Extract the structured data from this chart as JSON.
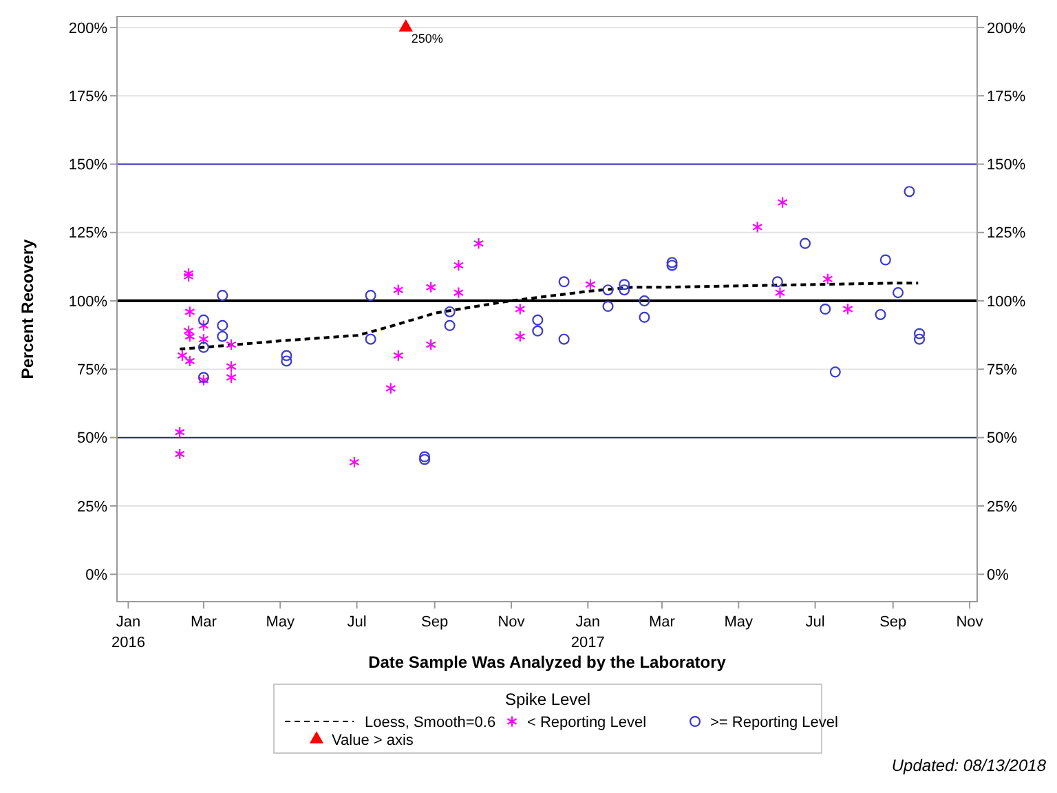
{
  "chart_data": {
    "type": "scatter",
    "xlabel": "Date Sample Was Analyzed by the Laboratory",
    "ylabel": "Percent Recovery",
    "legend_title": "Spike Level",
    "legend": "bottom",
    "grid": "y",
    "xlim": [
      "2015-12-23",
      "2017-11-07"
    ],
    "xticks": [
      {
        "value": "2016-01-01",
        "label": "Jan\n2016"
      },
      {
        "value": "2016-03-01",
        "label": "Mar"
      },
      {
        "value": "2016-05-01",
        "label": "May"
      },
      {
        "value": "2016-07-01",
        "label": "Jul"
      },
      {
        "value": "2016-09-01",
        "label": "Sep"
      },
      {
        "value": "2016-11-01",
        "label": "Nov"
      },
      {
        "value": "2017-01-01",
        "label": "Jan\n2017"
      },
      {
        "value": "2017-03-01",
        "label": "Mar"
      },
      {
        "value": "2017-05-01",
        "label": "May"
      },
      {
        "value": "2017-07-01",
        "label": "Jul"
      },
      {
        "value": "2017-09-01",
        "label": "Sep"
      },
      {
        "value": "2017-11-01",
        "label": "Nov"
      }
    ],
    "ylim": [
      -10,
      204
    ],
    "yticks": [
      {
        "value": 0,
        "label": "0%"
      },
      {
        "value": 25,
        "label": "25%"
      },
      {
        "value": 50,
        "label": "50%"
      },
      {
        "value": 75,
        "label": "75%"
      },
      {
        "value": 100,
        "label": "100%"
      },
      {
        "value": 125,
        "label": "125%"
      },
      {
        "value": 150,
        "label": "150%"
      },
      {
        "value": 175,
        "label": "175%"
      },
      {
        "value": 200,
        "label": "200%"
      }
    ],
    "y2lim": [
      -10,
      204
    ],
    "y2ticks": [
      {
        "value": 0,
        "label": "0%"
      },
      {
        "value": 25,
        "label": "25%"
      },
      {
        "value": 50,
        "label": "50%"
      },
      {
        "value": 75,
        "label": "75%"
      },
      {
        "value": 100,
        "label": "100%"
      },
      {
        "value": 125,
        "label": "125%"
      },
      {
        "value": 150,
        "label": "150%"
      },
      {
        "value": 175,
        "label": "175%"
      },
      {
        "value": 200,
        "label": "200%"
      }
    ],
    "ref_lines": [
      {
        "axis": "y",
        "value": 100,
        "color": "#000000"
      },
      {
        "axis": "y",
        "value": 150,
        "color": "#3434b0"
      },
      {
        "axis": "y",
        "value": 50,
        "color": "#2a2a80"
      }
    ],
    "series": [
      {
        "name": "Loess, Smooth=0.6",
        "type": "line",
        "line_style": "dashed",
        "marker": "none",
        "color": "#000000",
        "x": [
          "2016-02-11",
          "2016-03-01",
          "2016-05-02",
          "2016-07-02",
          "2016-08-03",
          "2016-09-01",
          "2016-10-31",
          "2017-01-01",
          "2017-02-06",
          "2017-03-01",
          "2017-05-01",
          "2017-07-01",
          "2017-09-01",
          "2017-09-21"
        ],
        "values": [
          82.4,
          83,
          85.4,
          87.4,
          91.5,
          95.5,
          100,
          103.5,
          105,
          105,
          105.5,
          106,
          106.5,
          106.5
        ]
      },
      {
        "name": "< Reporting Level",
        "marker": "cross",
        "color": "#ff00ff",
        "x": [
          "2016-02-11",
          "2016-02-11",
          "2016-02-13",
          "2016-02-18",
          "2016-02-18",
          "2016-02-19",
          "2016-02-18",
          "2016-02-19",
          "2016-02-19",
          "2016-03-01",
          "2016-03-01",
          "2016-03-01",
          "2016-03-23",
          "2016-03-23",
          "2016-03-23",
          "2016-06-29",
          "2016-07-28",
          "2016-08-03",
          "2016-08-03",
          "2016-08-29",
          "2016-08-29",
          "2016-09-20",
          "2016-09-20",
          "2016-10-06",
          "2016-11-08",
          "2016-11-08",
          "2017-01-03",
          "2017-05-16",
          "2017-06-03",
          "2017-06-05",
          "2017-07-11",
          "2017-07-27"
        ],
        "values": [
          52,
          44,
          80,
          110,
          109,
          96,
          89,
          87,
          78,
          91,
          86,
          71,
          84,
          76,
          72,
          41,
          68,
          104,
          80,
          105,
          84,
          113,
          103,
          121,
          97,
          87,
          106,
          127,
          103,
          136,
          108,
          97
        ]
      },
      {
        "name": ">= Reporting Level",
        "marker": "circle",
        "color": "#3b3bcc",
        "x": [
          "2016-03-01",
          "2016-03-01",
          "2016-03-01",
          "2016-03-16",
          "2016-03-16",
          "2016-03-16",
          "2016-05-06",
          "2016-05-06",
          "2016-07-12",
          "2016-07-12",
          "2016-08-24",
          "2016-08-24",
          "2016-09-13",
          "2016-09-13",
          "2016-11-22",
          "2016-11-22",
          "2016-12-13",
          "2016-12-13",
          "2017-01-17",
          "2017-01-17",
          "2017-01-30",
          "2017-01-30",
          "2017-02-15",
          "2017-02-15",
          "2017-03-09",
          "2017-03-09",
          "2017-06-01",
          "2017-06-23",
          "2017-07-09",
          "2017-07-17",
          "2017-08-22",
          "2017-08-26",
          "2017-09-05",
          "2017-09-14",
          "2017-09-22",
          "2017-09-22"
        ],
        "values": [
          93,
          83,
          72,
          102,
          91,
          87,
          80,
          78,
          102,
          86,
          43,
          42,
          96,
          91,
          93,
          89,
          107,
          86,
          104,
          98,
          106,
          104,
          100,
          94,
          114,
          113,
          107,
          121,
          97,
          74,
          95,
          115,
          103,
          140,
          88,
          86
        ]
      },
      {
        "name": "Value > axis",
        "marker": "triangle",
        "color": "#ff0000",
        "x": [
          "2016-08-09"
        ],
        "values": [
          200
        ]
      }
    ],
    "annotations": [
      {
        "text": "250%",
        "x": "2016-08-09",
        "y": 200
      },
      "Updated: 08/13/2018"
    ]
  }
}
